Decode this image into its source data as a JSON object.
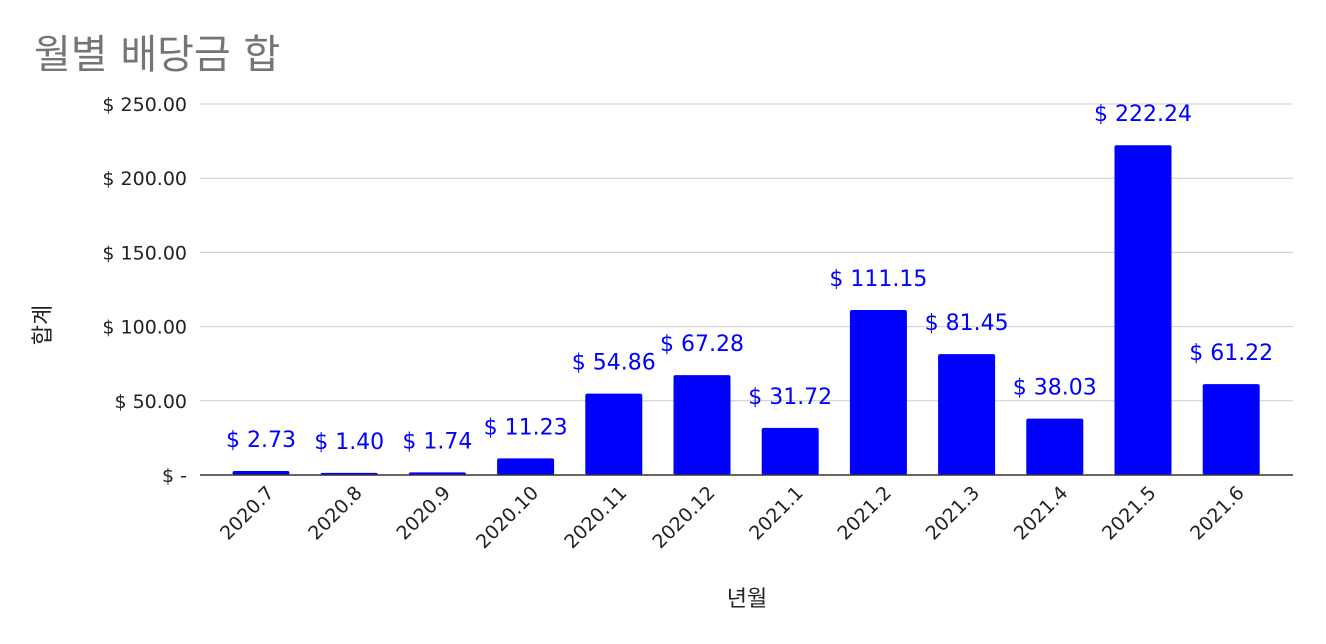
{
  "chart_data": {
    "type": "bar",
    "title": "월별 배당금 합",
    "xlabel": "년월",
    "ylabel": "합계",
    "categories": [
      "2020.7",
      "2020.8",
      "2020.9",
      "2020.10",
      "2020.11",
      "2020.12",
      "2021.1",
      "2021.2",
      "2021.3",
      "2021.4",
      "2021.5",
      "2021.6"
    ],
    "values": [
      2.73,
      1.4,
      1.74,
      11.23,
      54.86,
      67.28,
      31.72,
      111.15,
      81.45,
      38.03,
      222.24,
      61.22
    ],
    "data_labels": [
      "$ 2.73",
      "$ 1.40",
      "$ 1.74",
      "$ 11.23",
      "$ 54.86",
      "$ 67.28",
      "$ 31.72",
      "$ 111.15",
      "$ 81.45",
      "$ 38.03",
      "$ 222.24",
      "$ 61.22"
    ],
    "y_ticks": [
      0,
      50,
      100,
      150,
      200,
      250
    ],
    "y_tick_labels": [
      "$ -",
      "$ 50.00",
      "$ 100.00",
      "$ 150.00",
      "$ 200.00",
      "$ 250.00"
    ],
    "ylim": [
      0,
      250
    ],
    "grid": true,
    "legend": "none",
    "colors": {
      "bar": "#0000ff",
      "data_label": "#0000ff",
      "title": "#757575",
      "grid": "#cccccc",
      "axis": "#333333",
      "text": "#222222"
    }
  }
}
